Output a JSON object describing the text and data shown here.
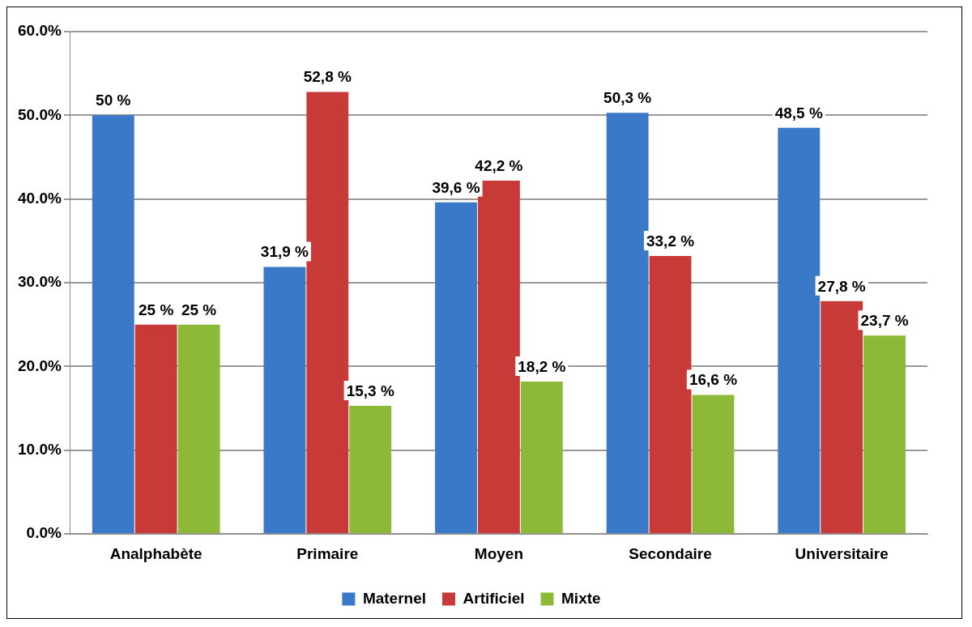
{
  "chart_data": {
    "type": "bar",
    "categories": [
      "Analphabète",
      "Primaire",
      "Moyen",
      "Secondaire",
      "Universitaire"
    ],
    "series": [
      {
        "name": "Maternel",
        "color": "#3a78c8",
        "values": [
          50,
          31.9,
          39.6,
          50.3,
          48.5
        ],
        "value_labels": [
          "50 %",
          "31,9 %",
          "39,6 %",
          "50,3 %",
          "48,5 %"
        ]
      },
      {
        "name": "Artificiel",
        "color": "#c83a38",
        "values": [
          25,
          52.8,
          42.2,
          33.2,
          27.8
        ],
        "value_labels": [
          "25 %",
          "52,8 %",
          "42,2 %",
          "33,2 %",
          "27,8 %"
        ]
      },
      {
        "name": "Mixte",
        "color": "#8cba38",
        "values": [
          25,
          15.3,
          18.2,
          16.6,
          23.7
        ],
        "value_labels": [
          "25 %",
          "15,3 %",
          "18,2 %",
          "16,6 %",
          "23,7 %"
        ]
      }
    ],
    "ylim": [
      0,
      60
    ],
    "yticks": [
      {
        "value": 0,
        "label": "0.0%"
      },
      {
        "value": 10,
        "label": "10.0%"
      },
      {
        "value": 20,
        "label": "20.0%"
      },
      {
        "value": 30,
        "label": "30.0%"
      },
      {
        "value": 40,
        "label": "40.0%"
      },
      {
        "value": 50,
        "label": "50.0%"
      },
      {
        "value": 60,
        "label": "60.0%"
      }
    ],
    "grid": "y",
    "legend": "bottom"
  }
}
